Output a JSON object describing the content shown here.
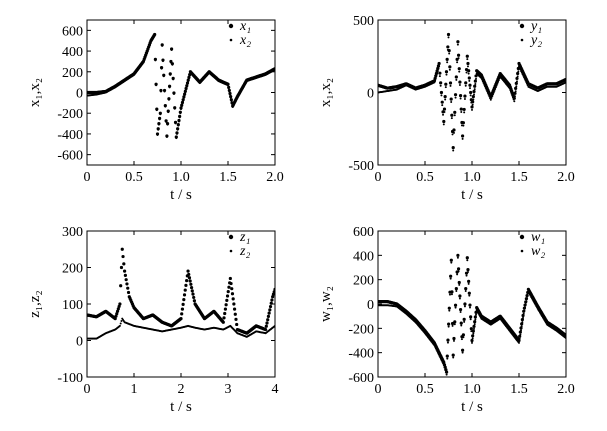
{
  "chart_data": [
    {
      "type": "scatter",
      "title": "",
      "xlabel": "t / s",
      "ylabel": "x₁,x₂",
      "xlim": [
        0,
        2.0
      ],
      "ylim": [
        -700,
        700
      ],
      "xticks": [
        "0",
        "0.5",
        "1.0",
        "1.5",
        "2.0"
      ],
      "xtick_values": [
        0,
        0.5,
        1.0,
        1.5,
        2.0
      ],
      "yticks": [
        "600",
        "400",
        "200",
        "0",
        "-200",
        "-400",
        "-600"
      ],
      "ytick_values": [
        600,
        400,
        200,
        0,
        -200,
        -400,
        -600
      ],
      "legend": "top-right",
      "series": [
        {
          "name": "x₁",
          "marker": "star",
          "x": [
            0,
            0.1,
            0.2,
            0.3,
            0.4,
            0.5,
            0.6,
            0.68,
            0.72,
            0.75,
            0.78,
            0.8,
            0.85,
            0.9,
            0.95,
            1.0,
            1.1,
            1.2,
            1.3,
            1.4,
            1.5,
            1.55,
            1.6,
            1.7,
            1.8,
            1.9,
            2.0
          ],
          "y": [
            0,
            0,
            10,
            60,
            120,
            180,
            300,
            500,
            560,
            -400,
            -200,
            460,
            -420,
            420,
            -430,
            -150,
            200,
            100,
            200,
            120,
            80,
            -130,
            -40,
            120,
            150,
            180,
            230
          ]
        },
        {
          "name": "x₂",
          "marker": "dot",
          "x": [
            0,
            0.1,
            0.2,
            0.3,
            0.4,
            0.5,
            0.6,
            0.68,
            0.72,
            0.75,
            0.78,
            0.8,
            0.85,
            0.9,
            0.95,
            1.0,
            1.1,
            1.2,
            1.3,
            1.4,
            1.5,
            1.55,
            1.6,
            1.7,
            1.8,
            1.9,
            2.0
          ],
          "y": [
            -30,
            -20,
            0,
            50,
            110,
            170,
            290,
            490,
            550,
            -410,
            -210,
            450,
            -430,
            410,
            -440,
            -160,
            190,
            90,
            190,
            110,
            70,
            -140,
            -50,
            110,
            140,
            170,
            220
          ]
        }
      ]
    },
    {
      "type": "scatter",
      "title": "",
      "xlabel": "t / s",
      "ylabel": "x₁,x₂",
      "xlim": [
        0,
        2.0
      ],
      "ylim": [
        -500,
        500
      ],
      "xticks": [
        "0",
        "0.5",
        "1.0",
        "1.5",
        "2.0"
      ],
      "xtick_values": [
        0,
        0.5,
        1.0,
        1.5,
        2.0
      ],
      "yticks": [
        "500",
        "0",
        "-500"
      ],
      "ytick_values": [
        500,
        0,
        -500
      ],
      "legend": "top-right",
      "series": [
        {
          "name": "y₁",
          "marker": "star",
          "x": [
            0,
            0.1,
            0.2,
            0.3,
            0.4,
            0.5,
            0.6,
            0.65,
            0.7,
            0.75,
            0.8,
            0.85,
            0.9,
            0.95,
            1.0,
            1.05,
            1.1,
            1.2,
            1.3,
            1.4,
            1.45,
            1.5,
            1.6,
            1.7,
            1.8,
            1.9,
            2.0
          ],
          "y": [
            50,
            30,
            40,
            60,
            30,
            50,
            80,
            200,
            -200,
            400,
            -380,
            350,
            -300,
            250,
            -100,
            150,
            120,
            -30,
            130,
            50,
            -40,
            200,
            60,
            30,
            60,
            60,
            90
          ]
        },
        {
          "name": "y₂",
          "marker": "dot",
          "x": [
            0,
            0.1,
            0.2,
            0.3,
            0.4,
            0.5,
            0.6,
            0.65,
            0.7,
            0.75,
            0.8,
            0.85,
            0.9,
            0.95,
            1.0,
            1.05,
            1.1,
            1.2,
            1.3,
            1.4,
            1.45,
            1.5,
            1.6,
            1.7,
            1.8,
            1.9,
            2.0
          ],
          "y": [
            0,
            10,
            20,
            50,
            20,
            40,
            70,
            180,
            -220,
            380,
            -400,
            330,
            -320,
            230,
            -120,
            130,
            100,
            -50,
            110,
            30,
            -60,
            180,
            40,
            10,
            40,
            40,
            70
          ]
        }
      ]
    },
    {
      "type": "scatter",
      "title": "",
      "xlabel": "t / s",
      "ylabel": "z₁,z₂",
      "xlim": [
        0,
        4
      ],
      "ylim": [
        -100,
        300
      ],
      "xticks": [
        "0",
        "1",
        "2",
        "3",
        "4"
      ],
      "xtick_values": [
        0,
        1,
        2,
        3,
        4
      ],
      "yticks": [
        "300",
        "200",
        "100",
        "0",
        "-100"
      ],
      "ytick_values": [
        300,
        200,
        100,
        0,
        -100
      ],
      "legend": "top-right",
      "series": [
        {
          "name": "z₁",
          "marker": "star",
          "x": [
            0,
            0.2,
            0.4,
            0.6,
            0.7,
            0.75,
            0.8,
            0.9,
            1.0,
            1.2,
            1.4,
            1.6,
            1.8,
            2.0,
            2.15,
            2.3,
            2.5,
            2.7,
            2.9,
            3.05,
            3.2,
            3.4,
            3.6,
            3.8,
            3.95,
            4.0
          ],
          "y": [
            70,
            65,
            80,
            60,
            100,
            250,
            190,
            120,
            90,
            60,
            70,
            50,
            40,
            60,
            190,
            100,
            60,
            80,
            50,
            170,
            30,
            20,
            40,
            30,
            120,
            140
          ]
        },
        {
          "name": "z₂",
          "marker": "dot",
          "x": [
            0,
            0.2,
            0.4,
            0.6,
            0.7,
            0.75,
            0.8,
            0.9,
            1.0,
            1.2,
            1.4,
            1.6,
            1.8,
            2.0,
            2.15,
            2.3,
            2.5,
            2.7,
            2.9,
            3.05,
            3.2,
            3.4,
            3.6,
            3.8,
            3.95,
            4.0
          ],
          "y": [
            5,
            5,
            20,
            30,
            40,
            60,
            50,
            45,
            40,
            35,
            30,
            25,
            30,
            35,
            40,
            35,
            30,
            35,
            30,
            40,
            20,
            10,
            25,
            20,
            35,
            40
          ]
        }
      ]
    },
    {
      "type": "scatter",
      "title": "",
      "xlabel": "t / s",
      "ylabel": "w₁,w₂",
      "xlim": [
        0,
        2.0
      ],
      "ylim": [
        -600,
        600
      ],
      "xticks": [
        "0",
        "0.5",
        "1.0",
        "1.5",
        "2.0"
      ],
      "xtick_values": [
        0,
        0.5,
        1.0,
        1.5,
        2.0
      ],
      "yticks": [
        "600",
        "400",
        "200",
        "0",
        "-200",
        "-400",
        "-600"
      ],
      "ytick_values": [
        600,
        400,
        200,
        0,
        -200,
        -400,
        -600
      ],
      "legend": "top-right",
      "series": [
        {
          "name": "w₁",
          "marker": "star",
          "x": [
            0,
            0.1,
            0.2,
            0.3,
            0.4,
            0.5,
            0.6,
            0.7,
            0.73,
            0.78,
            0.8,
            0.85,
            0.9,
            0.95,
            1.0,
            1.05,
            1.1,
            1.2,
            1.3,
            1.4,
            1.5,
            1.55,
            1.6,
            1.7,
            1.8,
            1.9,
            2.0
          ],
          "y": [
            20,
            20,
            0,
            -60,
            -130,
            -220,
            -320,
            -480,
            -560,
            360,
            -420,
            400,
            -380,
            380,
            -300,
            -30,
            -100,
            -150,
            -100,
            -200,
            -300,
            -60,
            120,
            -20,
            -150,
            -200,
            -260
          ]
        },
        {
          "name": "w₂",
          "marker": "dot",
          "x": [
            0,
            0.1,
            0.2,
            0.3,
            0.4,
            0.5,
            0.6,
            0.7,
            0.73,
            0.78,
            0.8,
            0.85,
            0.9,
            0.95,
            1.0,
            1.05,
            1.1,
            1.2,
            1.3,
            1.4,
            1.5,
            1.55,
            1.6,
            1.7,
            1.8,
            1.9,
            2.0
          ],
          "y": [
            -10,
            -10,
            -20,
            -80,
            -150,
            -240,
            -340,
            -500,
            -580,
            340,
            -440,
            380,
            -400,
            360,
            -320,
            -50,
            -120,
            -170,
            -120,
            -220,
            -320,
            -80,
            100,
            -40,
            -170,
            -220,
            -280
          ]
        }
      ]
    }
  ]
}
